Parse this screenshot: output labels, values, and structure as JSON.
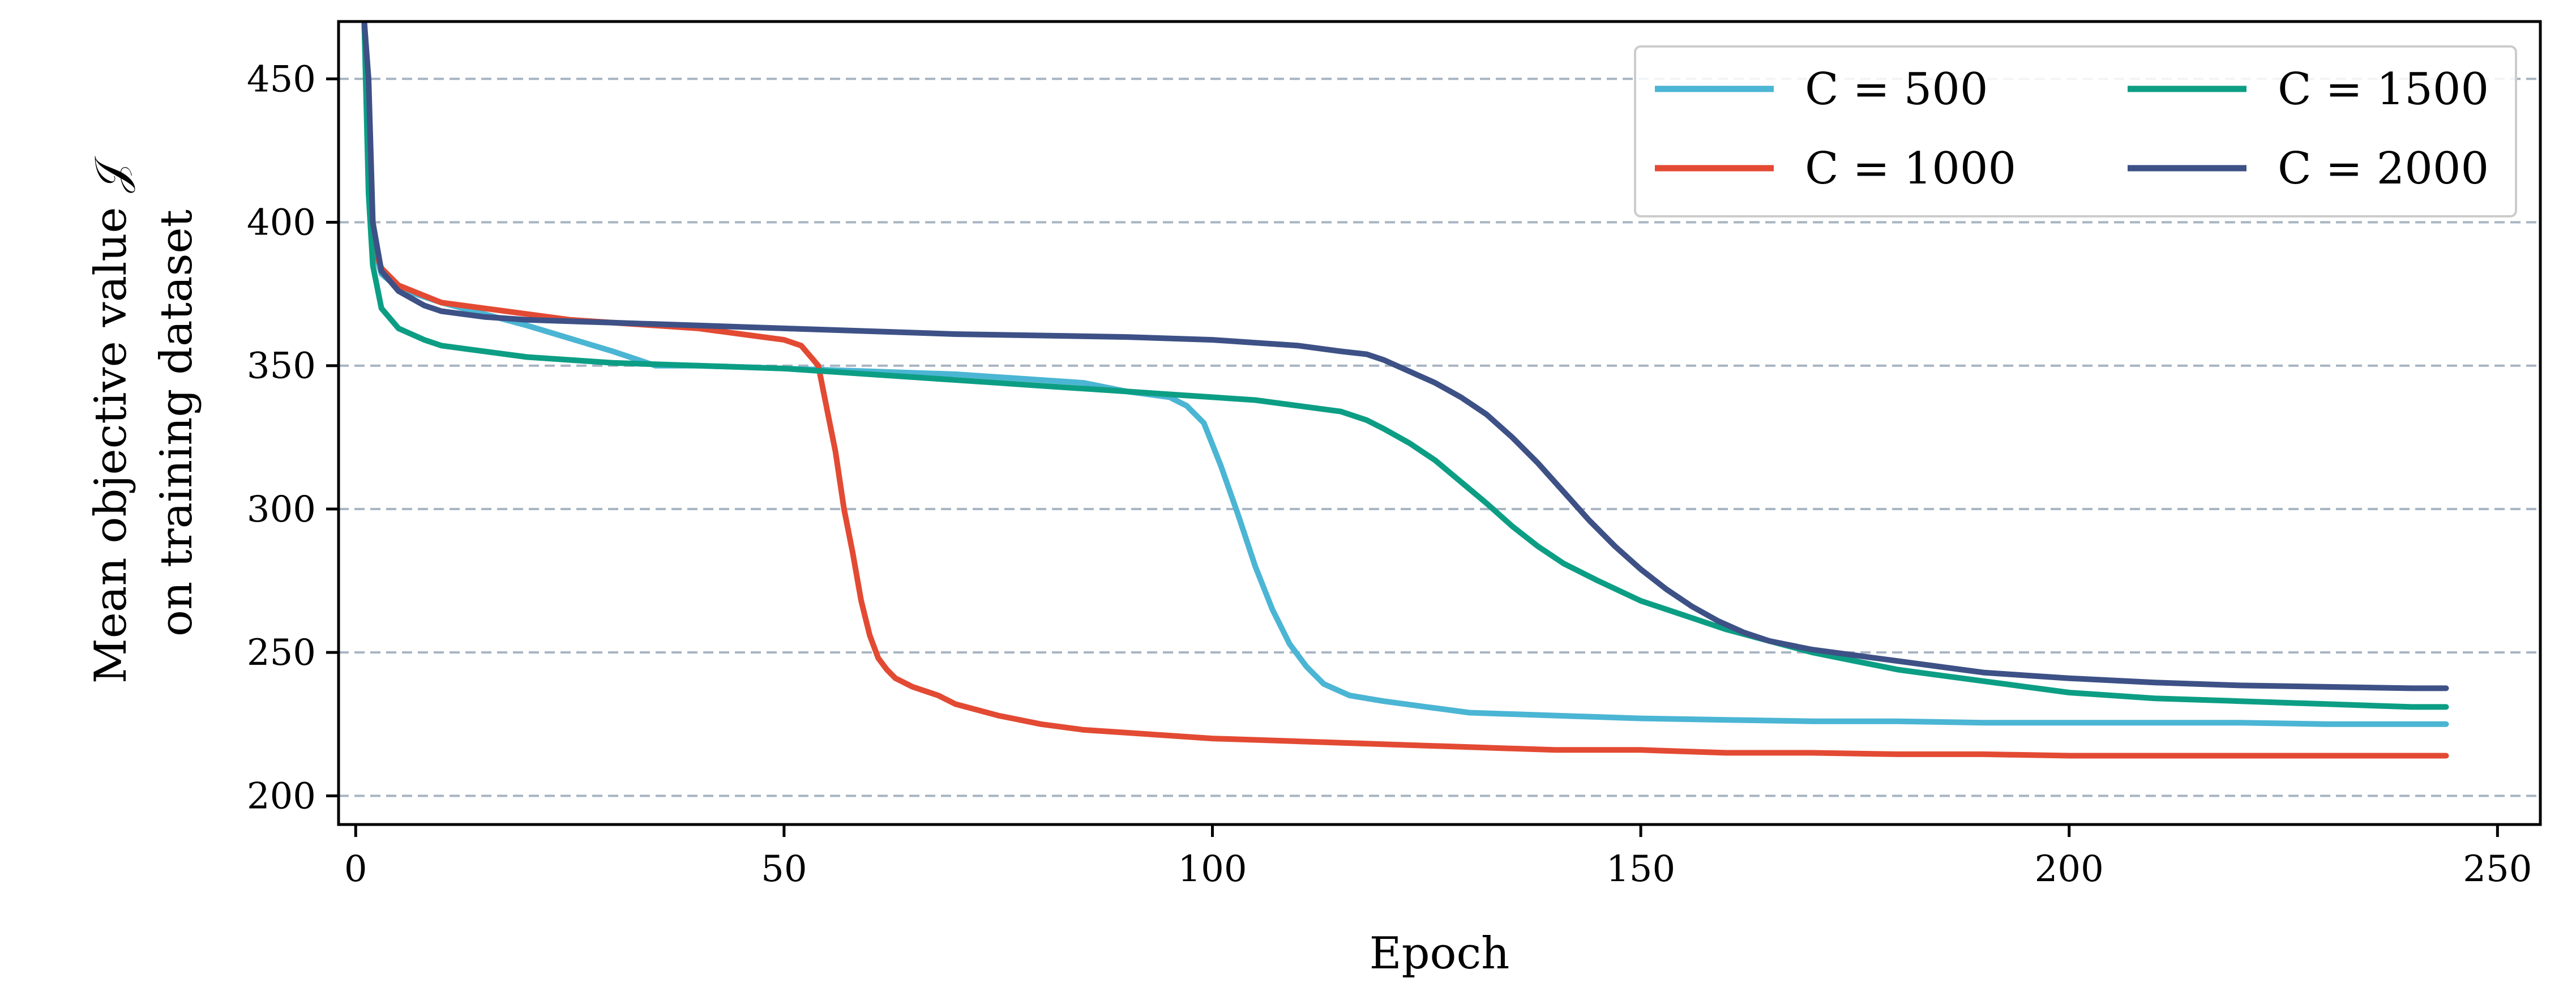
{
  "chart_data": {
    "type": "line",
    "xlabel": "Epoch",
    "ylabel_line1": "Mean objective value 𝒥",
    "ylabel_line2": "on training dataset",
    "xlim": [
      -2,
      255
    ],
    "ylim": [
      190,
      470
    ],
    "xticks": [
      0,
      50,
      100,
      150,
      200,
      250
    ],
    "yticks": [
      200,
      250,
      300,
      350,
      400,
      450
    ],
    "grid": "horizontal dashed",
    "legend_position": "top-right",
    "series": [
      {
        "name": "C = 500",
        "color": "#4bb5d4",
        "points": [
          [
            1,
            470
          ],
          [
            1.5,
            420
          ],
          [
            2,
            392
          ],
          [
            3,
            382
          ],
          [
            5,
            377
          ],
          [
            10,
            372
          ],
          [
            20,
            364
          ],
          [
            30,
            355
          ],
          [
            35,
            350
          ],
          [
            40,
            350
          ],
          [
            50,
            349
          ],
          [
            60,
            348
          ],
          [
            70,
            347
          ],
          [
            80,
            345
          ],
          [
            85,
            344
          ],
          [
            90,
            341
          ],
          [
            95,
            339
          ],
          [
            97,
            336
          ],
          [
            99,
            330
          ],
          [
            101,
            315
          ],
          [
            103,
            298
          ],
          [
            105,
            280
          ],
          [
            107,
            265
          ],
          [
            109,
            253
          ],
          [
            111,
            245
          ],
          [
            113,
            239
          ],
          [
            116,
            235
          ],
          [
            120,
            233
          ],
          [
            125,
            231
          ],
          [
            130,
            229
          ],
          [
            140,
            228
          ],
          [
            150,
            227
          ],
          [
            160,
            226.5
          ],
          [
            170,
            226
          ],
          [
            180,
            226
          ],
          [
            190,
            225.5
          ],
          [
            200,
            225.5
          ],
          [
            210,
            225.5
          ],
          [
            220,
            225.5
          ],
          [
            230,
            225
          ],
          [
            235,
            225
          ],
          [
            240,
            225
          ],
          [
            244,
            225
          ]
        ]
      },
      {
        "name": "C = 1000",
        "color": "#e34a33",
        "points": [
          [
            1,
            470
          ],
          [
            1.5,
            420
          ],
          [
            2,
            392
          ],
          [
            3,
            384
          ],
          [
            5,
            378
          ],
          [
            10,
            372
          ],
          [
            15,
            370
          ],
          [
            20,
            368
          ],
          [
            25,
            366
          ],
          [
            30,
            365
          ],
          [
            35,
            364
          ],
          [
            40,
            363
          ],
          [
            45,
            361
          ],
          [
            50,
            359
          ],
          [
            52,
            357
          ],
          [
            54,
            350
          ],
          [
            55,
            335
          ],
          [
            56,
            320
          ],
          [
            57,
            300
          ],
          [
            58,
            285
          ],
          [
            59,
            268
          ],
          [
            60,
            256
          ],
          [
            61,
            248
          ],
          [
            62,
            244
          ],
          [
            63,
            241
          ],
          [
            65,
            238
          ],
          [
            68,
            235
          ],
          [
            70,
            232
          ],
          [
            75,
            228
          ],
          [
            80,
            225
          ],
          [
            85,
            223
          ],
          [
            90,
            222
          ],
          [
            95,
            221
          ],
          [
            100,
            220
          ],
          [
            110,
            219
          ],
          [
            120,
            218
          ],
          [
            130,
            217
          ],
          [
            140,
            216
          ],
          [
            150,
            216
          ],
          [
            160,
            215
          ],
          [
            170,
            215
          ],
          [
            180,
            214.5
          ],
          [
            190,
            214.5
          ],
          [
            200,
            214
          ],
          [
            210,
            214
          ],
          [
            220,
            214
          ],
          [
            230,
            214
          ],
          [
            240,
            214
          ],
          [
            244,
            214
          ]
        ]
      },
      {
        "name": "C = 1500",
        "color": "#0c9e84",
        "points": [
          [
            1,
            470
          ],
          [
            1.5,
            410
          ],
          [
            2,
            385
          ],
          [
            3,
            370
          ],
          [
            5,
            363
          ],
          [
            8,
            359
          ],
          [
            10,
            357
          ],
          [
            15,
            355
          ],
          [
            20,
            353
          ],
          [
            25,
            352
          ],
          [
            30,
            351
          ],
          [
            40,
            350
          ],
          [
            50,
            349
          ],
          [
            60,
            347
          ],
          [
            70,
            345
          ],
          [
            80,
            343
          ],
          [
            90,
            341
          ],
          [
            95,
            340
          ],
          [
            100,
            339
          ],
          [
            105,
            338
          ],
          [
            110,
            336
          ],
          [
            115,
            334
          ],
          [
            118,
            331
          ],
          [
            120,
            328
          ],
          [
            123,
            323
          ],
          [
            126,
            317
          ],
          [
            128,
            312
          ],
          [
            130,
            307
          ],
          [
            132,
            302
          ],
          [
            135,
            294
          ],
          [
            138,
            287
          ],
          [
            141,
            281
          ],
          [
            145,
            275
          ],
          [
            150,
            268
          ],
          [
            155,
            263
          ],
          [
            160,
            258
          ],
          [
            165,
            254
          ],
          [
            170,
            250
          ],
          [
            175,
            247
          ],
          [
            180,
            244
          ],
          [
            185,
            242
          ],
          [
            190,
            240
          ],
          [
            195,
            238
          ],
          [
            200,
            236
          ],
          [
            210,
            234
          ],
          [
            220,
            233
          ],
          [
            230,
            232
          ],
          [
            240,
            231
          ],
          [
            244,
            231
          ]
        ]
      },
      {
        "name": "C = 2000",
        "color": "#3d5186",
        "points": [
          [
            1,
            470
          ],
          [
            1.5,
            450
          ],
          [
            2,
            400
          ],
          [
            3,
            383
          ],
          [
            5,
            376
          ],
          [
            8,
            371
          ],
          [
            10,
            369
          ],
          [
            15,
            367
          ],
          [
            20,
            366
          ],
          [
            30,
            365
          ],
          [
            40,
            364
          ],
          [
            50,
            363
          ],
          [
            60,
            362
          ],
          [
            70,
            361
          ],
          [
            80,
            360.5
          ],
          [
            90,
            360
          ],
          [
            100,
            359
          ],
          [
            105,
            358
          ],
          [
            110,
            357
          ],
          [
            115,
            355
          ],
          [
            118,
            354
          ],
          [
            120,
            352
          ],
          [
            123,
            348
          ],
          [
            126,
            344
          ],
          [
            129,
            339
          ],
          [
            132,
            333
          ],
          [
            135,
            325
          ],
          [
            138,
            316
          ],
          [
            141,
            306
          ],
          [
            144,
            296
          ],
          [
            147,
            287
          ],
          [
            150,
            279
          ],
          [
            153,
            272
          ],
          [
            156,
            266
          ],
          [
            159,
            261
          ],
          [
            162,
            257
          ],
          [
            165,
            254
          ],
          [
            170,
            251
          ],
          [
            175,
            249
          ],
          [
            180,
            247
          ],
          [
            185,
            245
          ],
          [
            190,
            243
          ],
          [
            195,
            242
          ],
          [
            200,
            241
          ],
          [
            210,
            239.5
          ],
          [
            220,
            238.5
          ],
          [
            230,
            238
          ],
          [
            240,
            237.5
          ],
          [
            244,
            237.5
          ]
        ]
      }
    ]
  }
}
